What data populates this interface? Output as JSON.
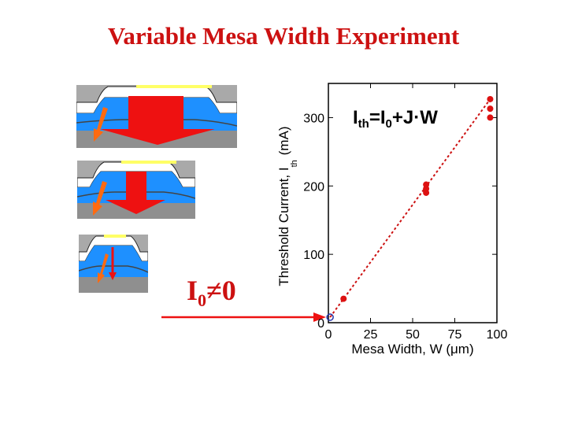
{
  "slide": {
    "title": "Variable Mesa Width Experiment",
    "callout_main": "I",
    "callout_sub": "0",
    "callout_rest": "≠0"
  },
  "colors": {
    "title": "#cc1111",
    "data": "#dd1111",
    "fit_line": "#cc1111",
    "mesa_blue": "#1e90ff",
    "mesa_gray": "#9a9a9a",
    "arrow_red": "#ee1111",
    "arrow_orange": "#ff6a10"
  },
  "chart_data": {
    "type": "scatter",
    "title": "",
    "equation": {
      "I": "I",
      "th": "th",
      "eq": "=I",
      "zero": "0",
      "rest": "+J·W"
    },
    "xlabel": "Mesa Width, W (μm)",
    "ylabel_main": "Threshold Current, I",
    "ylabel_sub": "th",
    "ylabel_unit": "(mA)",
    "xlim": [
      0,
      100
    ],
    "ylim": [
      0,
      350
    ],
    "xticks": [
      0,
      25,
      50,
      75,
      100
    ],
    "xtick_labels": [
      "0",
      "25",
      "50",
      "75",
      "100"
    ],
    "yticks": [
      0,
      100,
      200,
      300
    ],
    "ytick_labels": [
      "0",
      "100",
      "200",
      "300"
    ],
    "grid": false,
    "series": [
      {
        "points": [
          {
            "x": 9,
            "y": 35
          },
          {
            "x": 58,
            "y": 190
          },
          {
            "x": 58,
            "y": 196
          },
          {
            "x": 58,
            "y": 202
          },
          {
            "x": 96,
            "y": 300
          },
          {
            "x": 96,
            "y": 313
          },
          {
            "x": 96,
            "y": 327
          }
        ]
      }
    ],
    "intercept_point": {
      "x": 1,
      "y": 8
    },
    "fit_line": {
      "x": [
        1,
        96
      ],
      "y": [
        8,
        327
      ]
    }
  }
}
